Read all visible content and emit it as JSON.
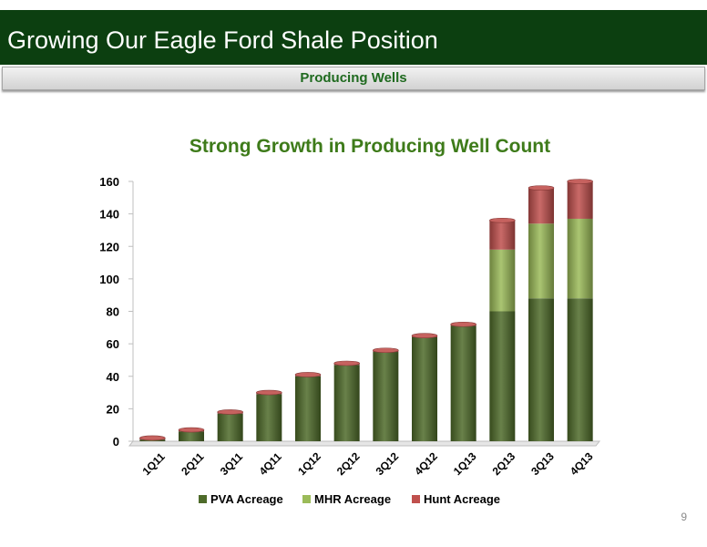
{
  "header": {
    "title": "Growing Our Eagle Ford Shale Position",
    "subtitle": "Producing Wells"
  },
  "page_number": "9",
  "colors": {
    "header_bg": "#0c3f10",
    "subtitle_text": "#1f6a1f",
    "chart_title": "#3e7b1a",
    "pva": "#4e6b2a",
    "mhr": "#9bbb59",
    "hunt": "#c0504d"
  },
  "chart_data": {
    "type": "bar",
    "stacked": true,
    "title": "Strong Growth in Producing Well Count",
    "xlabel": "",
    "ylabel": "",
    "ylim": [
      0,
      160
    ],
    "yticks": [
      0,
      20,
      40,
      60,
      80,
      100,
      120,
      140,
      160
    ],
    "categories": [
      "1Q11",
      "2Q11",
      "3Q11",
      "4Q11",
      "1Q12",
      "2Q12",
      "3Q12",
      "4Q12",
      "1Q13",
      "2Q13",
      "3Q13",
      "4Q13"
    ],
    "series": [
      {
        "name": "PVA Acreage",
        "color": "#4e6b2a",
        "values": [
          1,
          6,
          17,
          29,
          40,
          47,
          55,
          64,
          71,
          80,
          88,
          88
        ]
      },
      {
        "name": "MHR Acreage",
        "color": "#9bbb59",
        "values": [
          0,
          0,
          0,
          0,
          0,
          0,
          0,
          0,
          0,
          38,
          46,
          49
        ]
      },
      {
        "name": "Hunt Acreage",
        "color": "#c0504d",
        "values": [
          1,
          1,
          1,
          1,
          1,
          1,
          1,
          1,
          1,
          18,
          22,
          23
        ]
      }
    ],
    "legend_position": "bottom",
    "grid": false
  }
}
